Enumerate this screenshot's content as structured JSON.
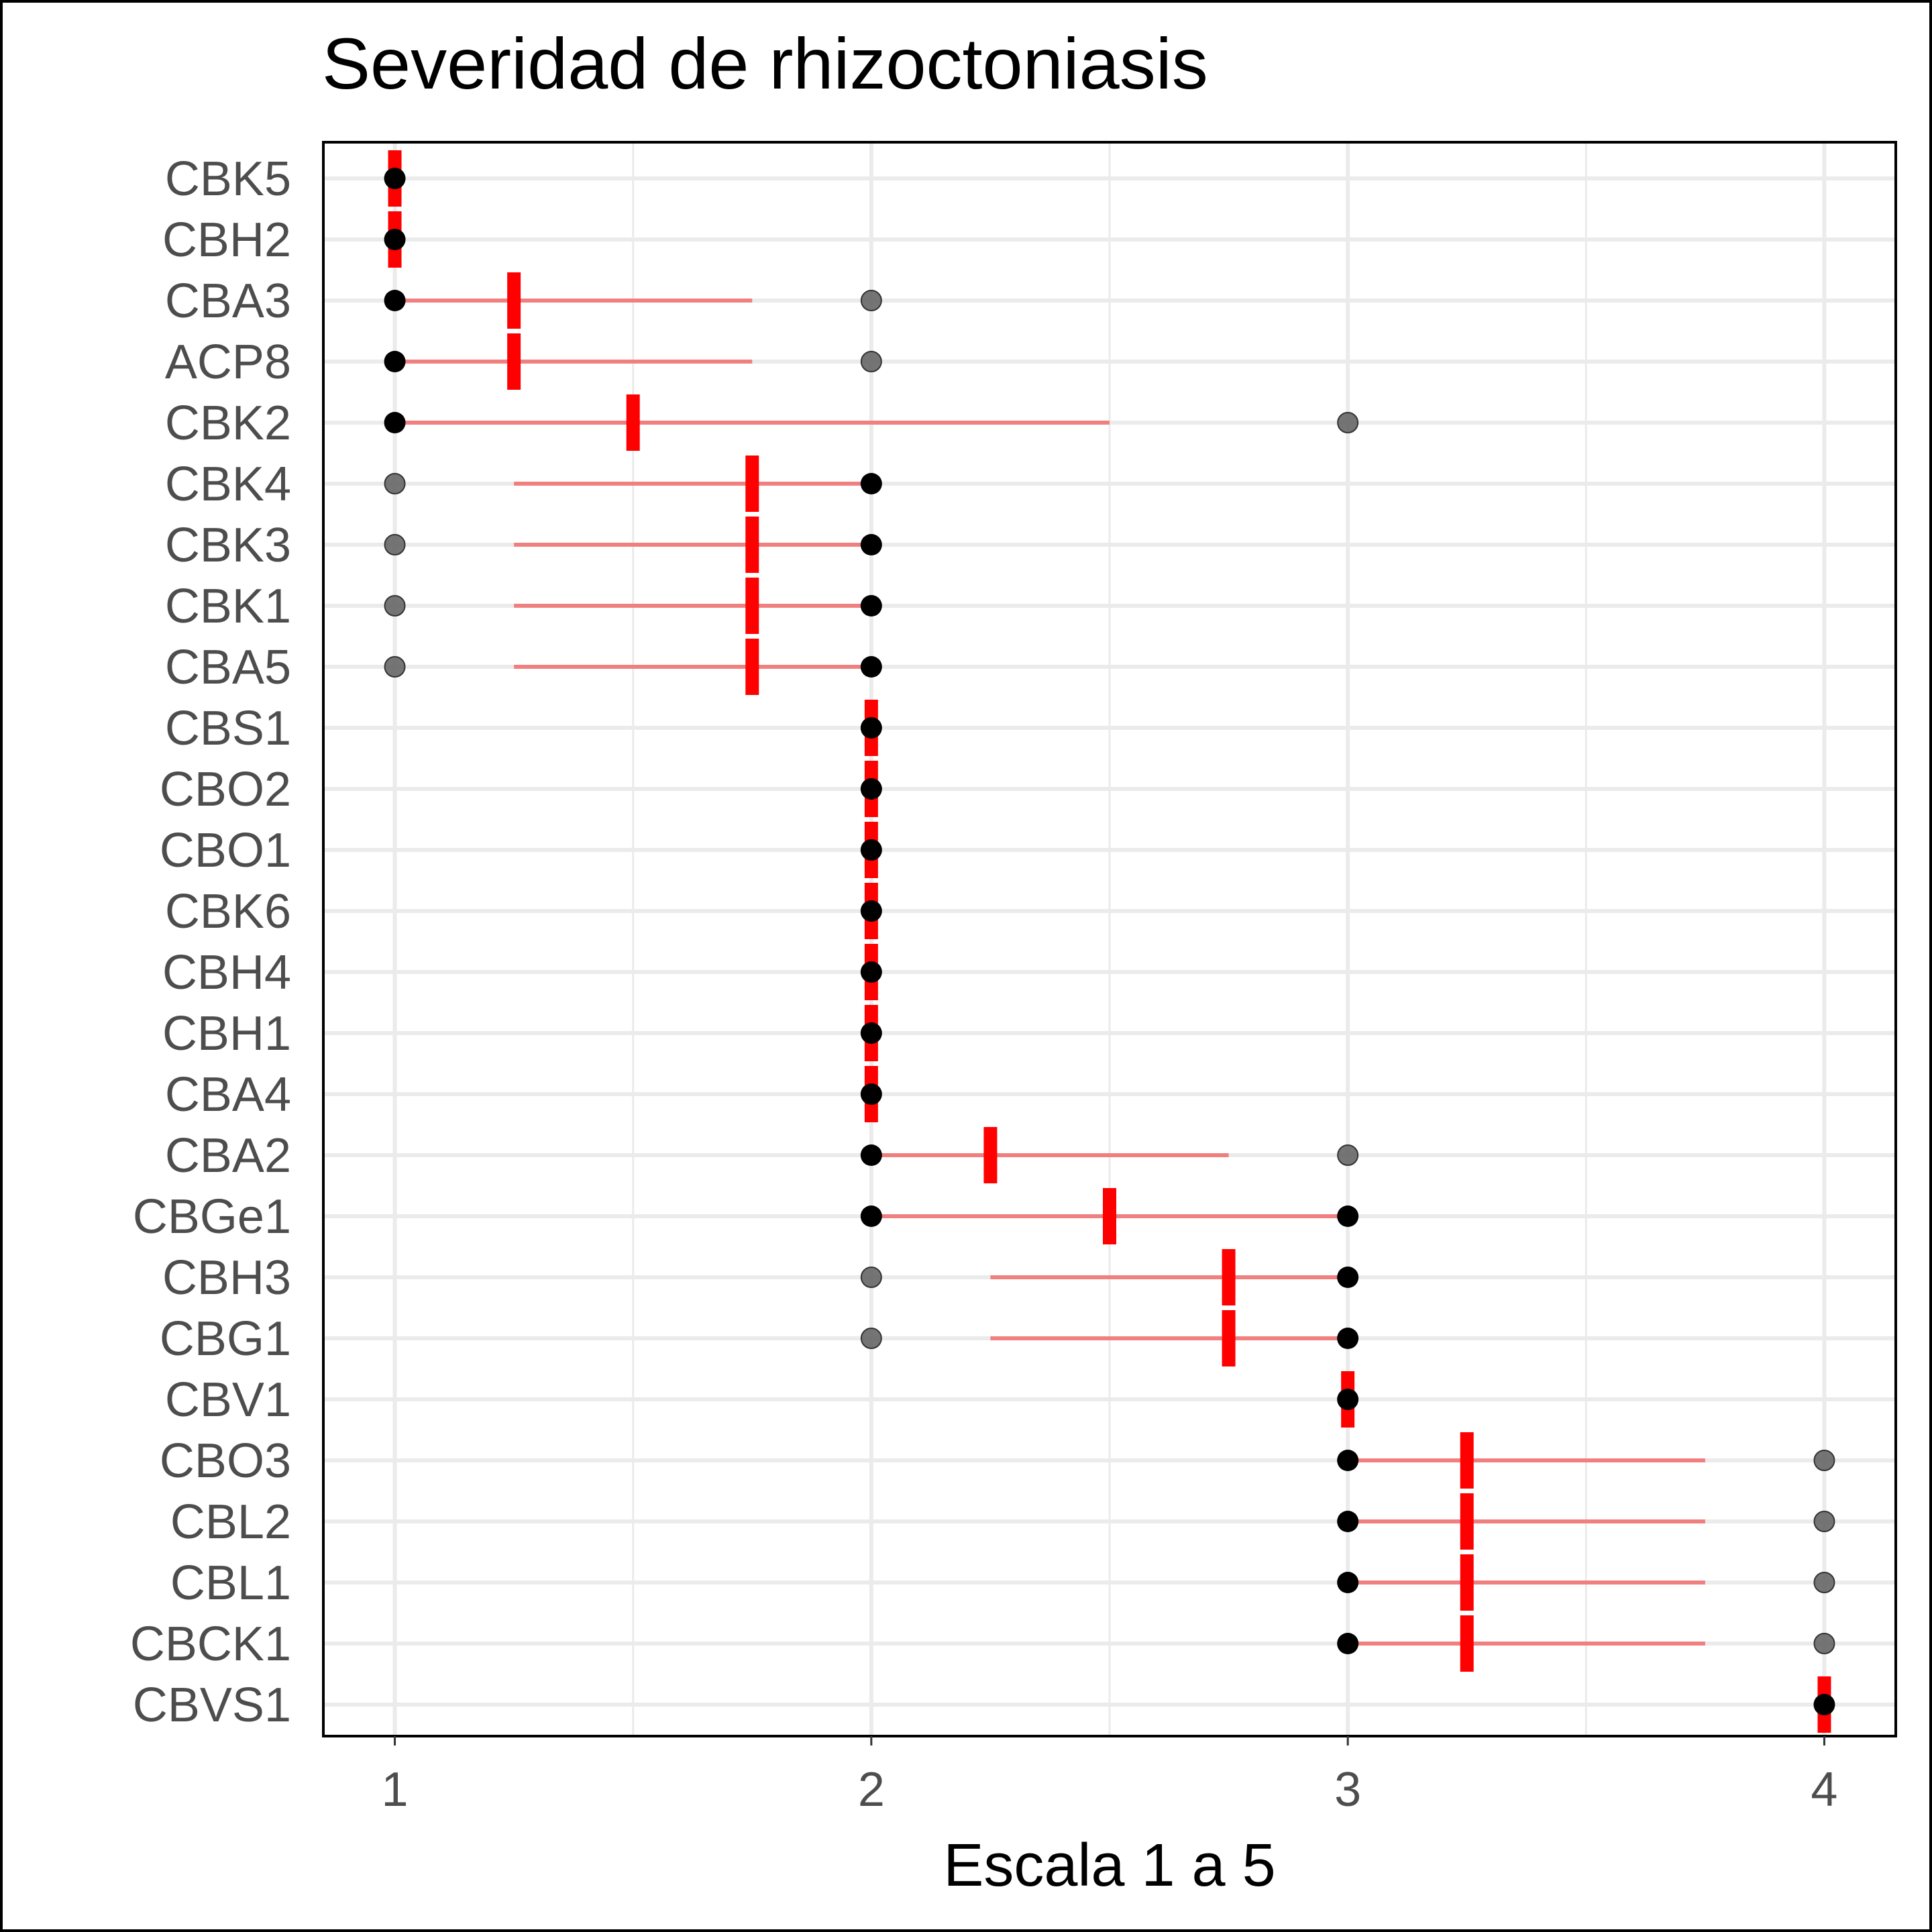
{
  "chart_data": {
    "type": "scatter",
    "title": "Severidad de rhizoctoniasis",
    "xlabel": "Escala 1 a 5",
    "ylabel": "",
    "xlim": [
      0.85,
      4.15
    ],
    "x_ticks": [
      1,
      2,
      3,
      4
    ],
    "grid": true,
    "legend": "none",
    "colors": {
      "mean_marker": "#ff0000",
      "range_line": "#f08080",
      "primary_point": "#000000",
      "secondary_point": "#666666",
      "grid": "#ebebeb",
      "axis_text": "#4d4d4d"
    },
    "rows": [
      {
        "label": "CBK5",
        "mean": 1,
        "line": null,
        "points": [
          {
            "x": 1,
            "primary": true
          }
        ]
      },
      {
        "label": "CBH2",
        "mean": 1,
        "line": null,
        "points": [
          {
            "x": 1,
            "primary": true
          }
        ]
      },
      {
        "label": "CBA3",
        "mean": 1.25,
        "line": [
          1,
          1.75
        ],
        "points": [
          {
            "x": 1,
            "primary": true
          },
          {
            "x": 2,
            "primary": false
          }
        ]
      },
      {
        "label": "ACP8",
        "mean": 1.25,
        "line": [
          1,
          1.75
        ],
        "points": [
          {
            "x": 1,
            "primary": true
          },
          {
            "x": 2,
            "primary": false
          }
        ]
      },
      {
        "label": "CBK2",
        "mean": 1.5,
        "line": [
          1,
          2.5
        ],
        "points": [
          {
            "x": 1,
            "primary": true
          },
          {
            "x": 3,
            "primary": false
          }
        ]
      },
      {
        "label": "CBK4",
        "mean": 1.75,
        "line": [
          1.25,
          2
        ],
        "points": [
          {
            "x": 1,
            "primary": false
          },
          {
            "x": 2,
            "primary": true
          }
        ]
      },
      {
        "label": "CBK3",
        "mean": 1.75,
        "line": [
          1.25,
          2
        ],
        "points": [
          {
            "x": 1,
            "primary": false
          },
          {
            "x": 2,
            "primary": true
          }
        ]
      },
      {
        "label": "CBK1",
        "mean": 1.75,
        "line": [
          1.25,
          2
        ],
        "points": [
          {
            "x": 1,
            "primary": false
          },
          {
            "x": 2,
            "primary": true
          }
        ]
      },
      {
        "label": "CBA5",
        "mean": 1.75,
        "line": [
          1.25,
          2
        ],
        "points": [
          {
            "x": 1,
            "primary": false
          },
          {
            "x": 2,
            "primary": true
          }
        ]
      },
      {
        "label": "CBS1",
        "mean": 2,
        "line": null,
        "points": [
          {
            "x": 2,
            "primary": true
          }
        ]
      },
      {
        "label": "CBO2",
        "mean": 2,
        "line": null,
        "points": [
          {
            "x": 2,
            "primary": true
          }
        ]
      },
      {
        "label": "CBO1",
        "mean": 2,
        "line": null,
        "points": [
          {
            "x": 2,
            "primary": true
          }
        ]
      },
      {
        "label": "CBK6",
        "mean": 2,
        "line": null,
        "points": [
          {
            "x": 2,
            "primary": true
          }
        ]
      },
      {
        "label": "CBH4",
        "mean": 2,
        "line": null,
        "points": [
          {
            "x": 2,
            "primary": true
          }
        ]
      },
      {
        "label": "CBH1",
        "mean": 2,
        "line": null,
        "points": [
          {
            "x": 2,
            "primary": true
          }
        ]
      },
      {
        "label": "CBA4",
        "mean": 2,
        "line": null,
        "points": [
          {
            "x": 2,
            "primary": true
          }
        ]
      },
      {
        "label": "CBA2",
        "mean": 2.25,
        "line": [
          2,
          2.75
        ],
        "points": [
          {
            "x": 2,
            "primary": true
          },
          {
            "x": 3,
            "primary": false
          }
        ]
      },
      {
        "label": "CBGe1",
        "mean": 2.5,
        "line": [
          2,
          3
        ],
        "points": [
          {
            "x": 2,
            "primary": true
          },
          {
            "x": 3,
            "primary": true
          }
        ]
      },
      {
        "label": "CBH3",
        "mean": 2.75,
        "line": [
          2.25,
          3
        ],
        "points": [
          {
            "x": 2,
            "primary": false
          },
          {
            "x": 3,
            "primary": true
          }
        ]
      },
      {
        "label": "CBG1",
        "mean": 2.75,
        "line": [
          2.25,
          3
        ],
        "points": [
          {
            "x": 2,
            "primary": false
          },
          {
            "x": 3,
            "primary": true
          }
        ]
      },
      {
        "label": "CBV1",
        "mean": 3,
        "line": null,
        "points": [
          {
            "x": 3,
            "primary": true
          }
        ]
      },
      {
        "label": "CBO3",
        "mean": 3.25,
        "line": [
          3,
          3.75
        ],
        "points": [
          {
            "x": 3,
            "primary": true
          },
          {
            "x": 4,
            "primary": false
          }
        ]
      },
      {
        "label": "CBL2",
        "mean": 3.25,
        "line": [
          3,
          3.75
        ],
        "points": [
          {
            "x": 3,
            "primary": true
          },
          {
            "x": 4,
            "primary": false
          }
        ]
      },
      {
        "label": "CBL1",
        "mean": 3.25,
        "line": [
          3,
          3.75
        ],
        "points": [
          {
            "x": 3,
            "primary": true
          },
          {
            "x": 4,
            "primary": false
          }
        ]
      },
      {
        "label": "CBCK1",
        "mean": 3.25,
        "line": [
          3,
          3.75
        ],
        "points": [
          {
            "x": 3,
            "primary": true
          },
          {
            "x": 4,
            "primary": false
          }
        ]
      },
      {
        "label": "CBVS1",
        "mean": 4,
        "line": null,
        "points": [
          {
            "x": 4,
            "primary": true
          }
        ]
      }
    ]
  }
}
